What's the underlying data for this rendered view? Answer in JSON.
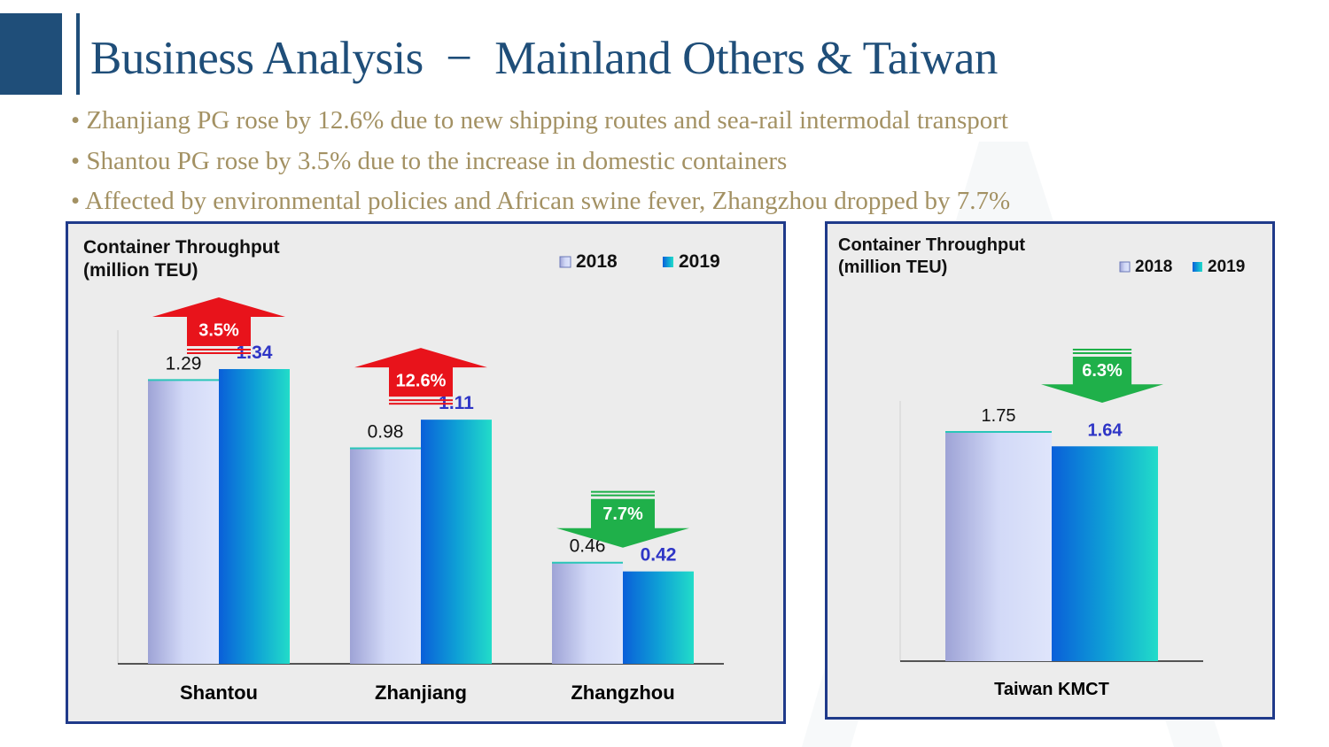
{
  "header": {
    "title": "Business Analysis  −  Mainland Others & Taiwan"
  },
  "bullets": [
    "Zhanjiang PG rose by 12.6% due to new shipping routes and sea-rail intermodal transport",
    "Shantou PG rose by 3.5% due to the increase in domestic containers",
    "Affected by environmental policies and African swine fever, Zhangzhou dropped by 7.7%"
  ],
  "colors": {
    "accent": "#1f4e79",
    "bullet_text": "#a39163",
    "panel_border": "#1f3a8a",
    "increase_arrow": "#e8131b",
    "decrease_arrow": "#1fb04a",
    "value_2019": "#2e35c6"
  },
  "chart_data": [
    {
      "type": "bar",
      "title_lines": [
        "Container Throughput",
        "(million TEU)"
      ],
      "categories": [
        "Shantou",
        "Zhanjiang",
        "Zhangzhou"
      ],
      "series": [
        {
          "name": "2018",
          "values": [
            1.29,
            0.98,
            0.46
          ],
          "labels": [
            "1.29",
            "0.98",
            "0.46"
          ]
        },
        {
          "name": "2019",
          "values": [
            1.34,
            1.11,
            0.42
          ],
          "labels": [
            "1.34",
            "1.11",
            "0.42"
          ]
        }
      ],
      "changes": [
        {
          "label": "3.5%",
          "direction": "up"
        },
        {
          "label": "12.6%",
          "direction": "up"
        },
        {
          "label": "7.7%",
          "direction": "down"
        }
      ],
      "ylim": [
        0,
        2.0
      ],
      "grid": false,
      "legend": "top-right"
    },
    {
      "type": "bar",
      "title_lines": [
        "Container Throughput",
        "(million TEU)"
      ],
      "categories": [
        "Taiwan KMCT"
      ],
      "series": [
        {
          "name": "2018",
          "values": [
            1.75
          ],
          "labels": [
            "1.75"
          ]
        },
        {
          "name": "2019",
          "values": [
            1.64
          ],
          "labels": [
            "1.64"
          ]
        }
      ],
      "changes": [
        {
          "label": "6.3%",
          "direction": "down"
        }
      ],
      "ylim": [
        0,
        2.5
      ],
      "grid": false,
      "legend": "top-right"
    }
  ]
}
